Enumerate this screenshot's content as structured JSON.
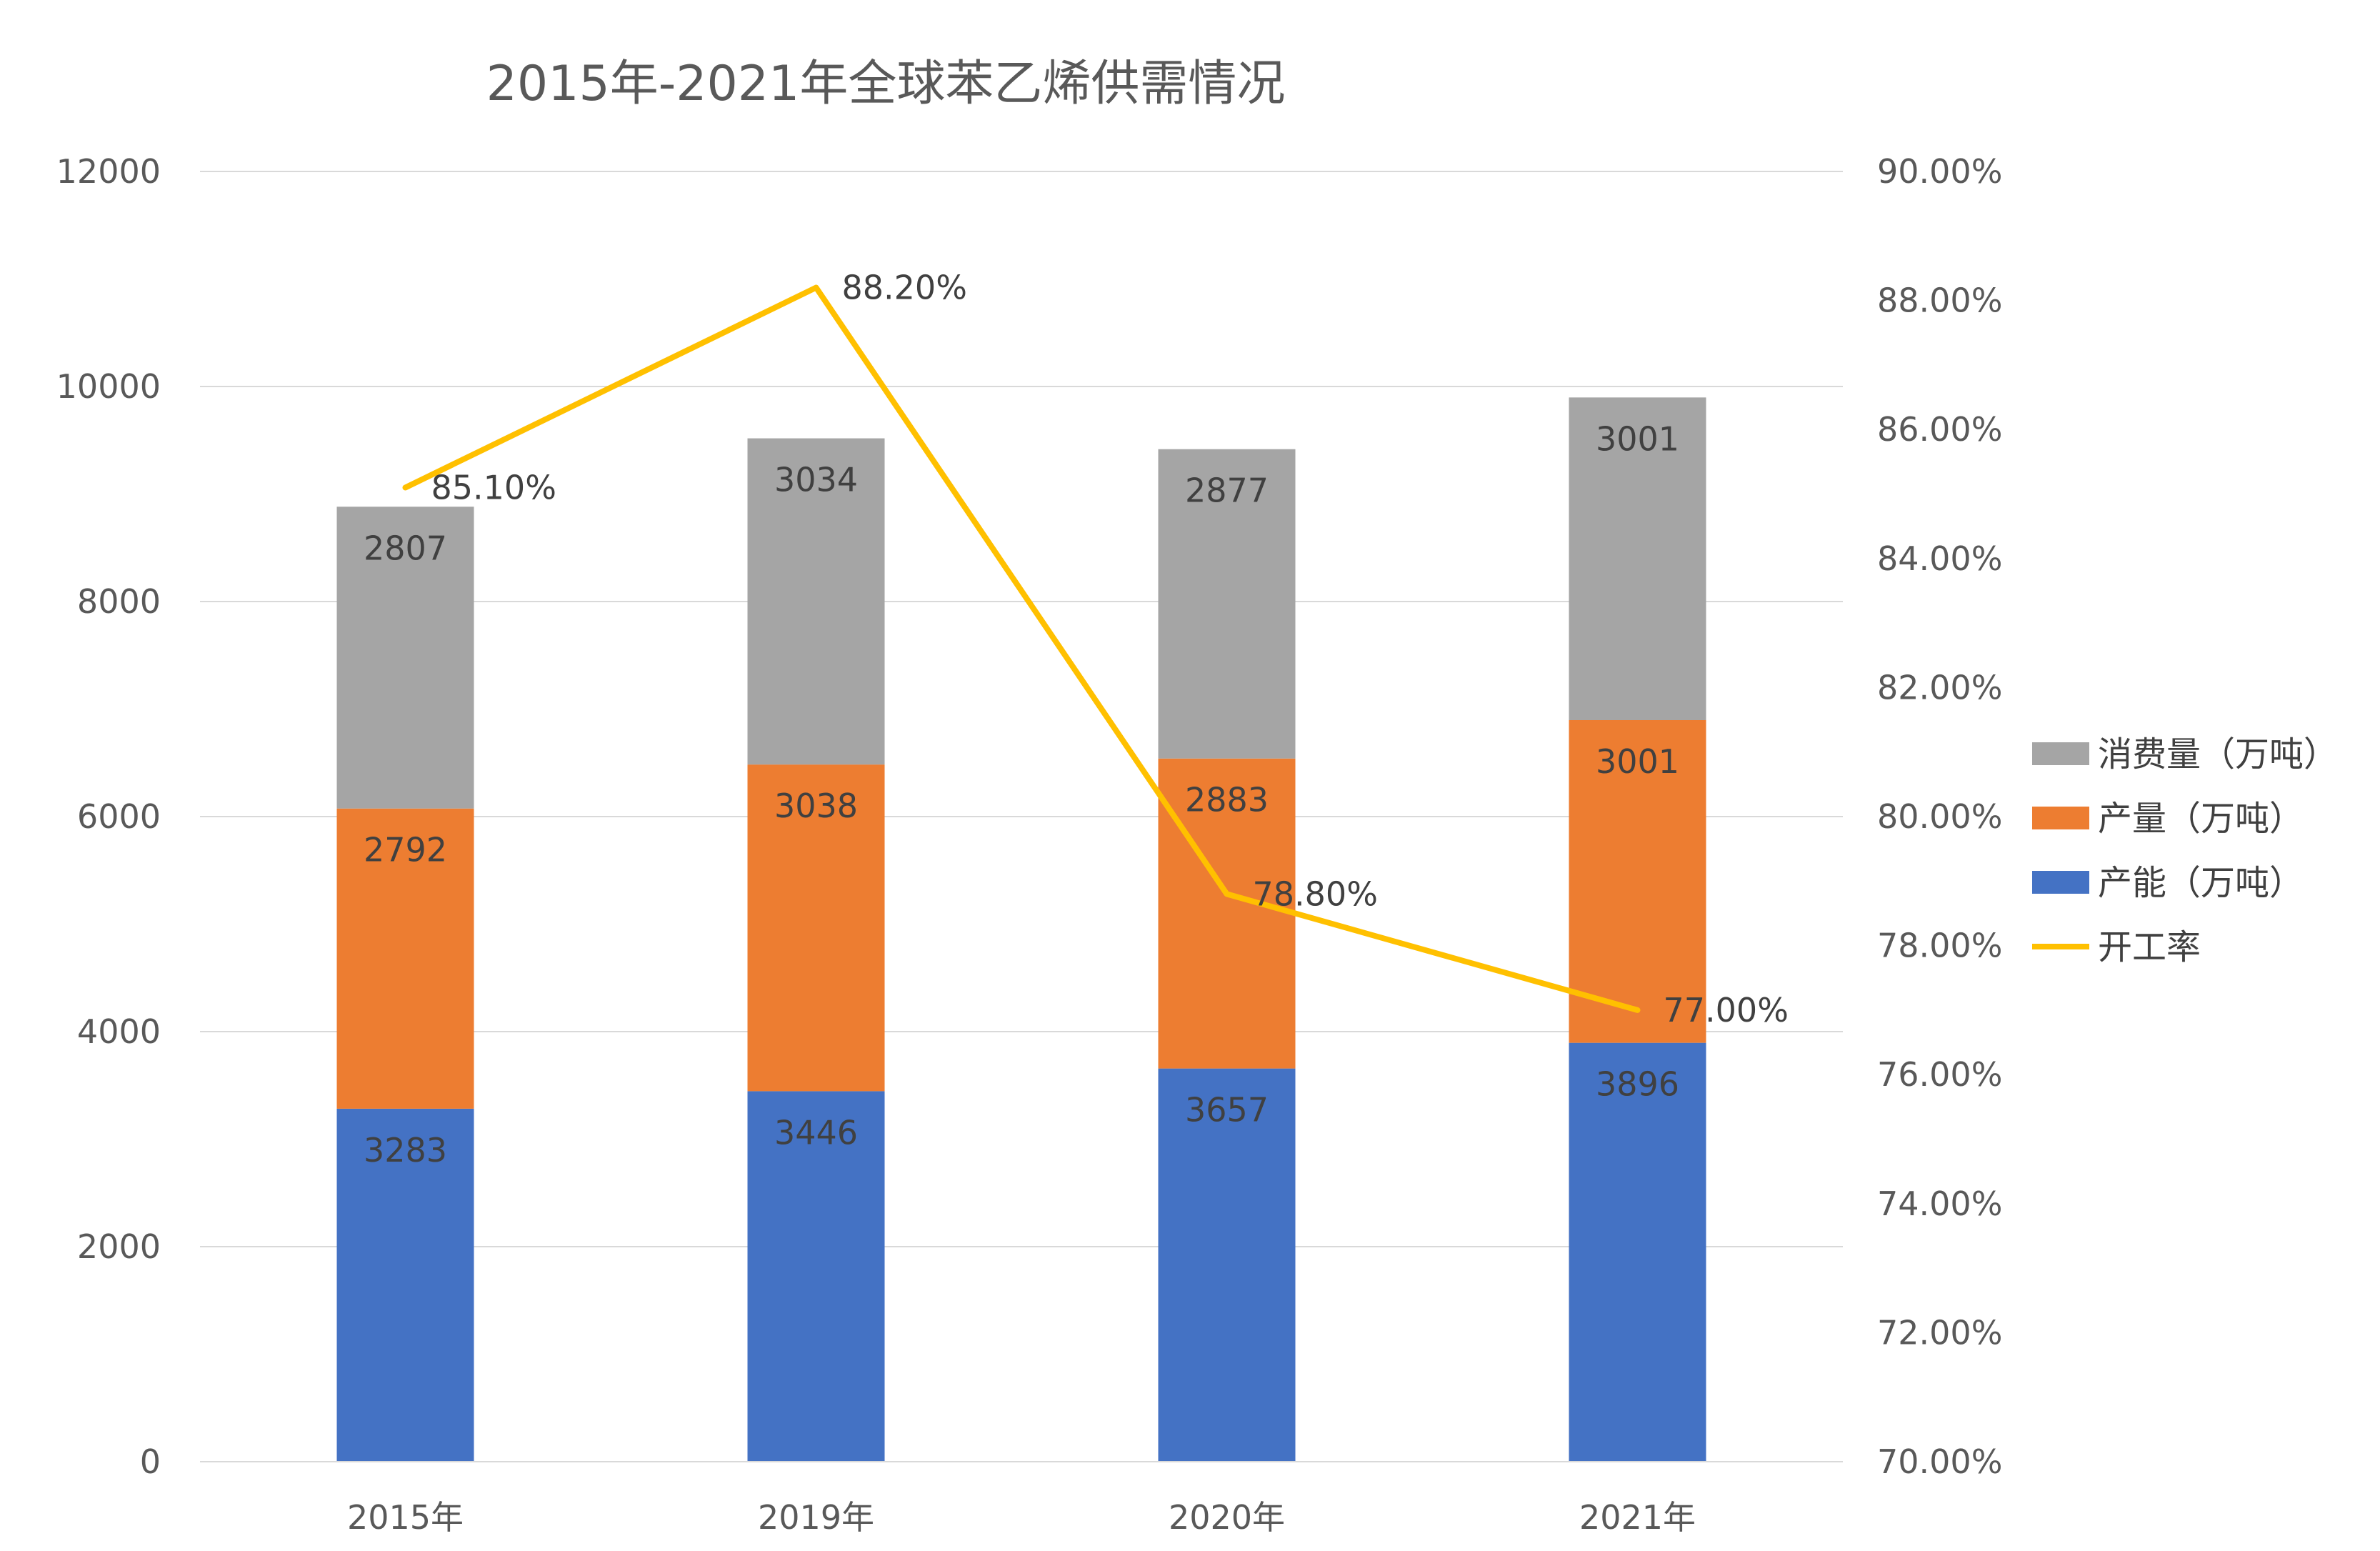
{
  "chart_data": {
    "type": "bar",
    "stacked": true,
    "title": "2015年-2021年全球苯乙烯供需情况",
    "categories": [
      "2015年",
      "2019年",
      "2020年",
      "2021年"
    ],
    "ylim": [
      0,
      12000
    ],
    "yticks": [
      0,
      2000,
      4000,
      6000,
      8000,
      10000,
      12000
    ],
    "y2lim": [
      70,
      90
    ],
    "y2ticks": [
      "70.00%",
      "72.00%",
      "74.00%",
      "76.00%",
      "78.00%",
      "80.00%",
      "82.00%",
      "84.00%",
      "86.00%",
      "88.00%",
      "90.00%"
    ],
    "grid": true,
    "legend_position": "right",
    "series": [
      {
        "name": "产能（万吨）",
        "type": "bar",
        "axis": "left",
        "color": "#4472C4",
        "values": [
          3283,
          3446,
          3657,
          3896
        ]
      },
      {
        "name": "产量（万吨）",
        "type": "bar",
        "axis": "left",
        "color": "#ED7D31",
        "values": [
          2792,
          3038,
          2883,
          3001
        ]
      },
      {
        "name": "消费量（万吨）",
        "type": "bar",
        "axis": "left",
        "color": "#A5A5A5",
        "values": [
          2807,
          3034,
          2877,
          3001
        ]
      },
      {
        "name": "开工率",
        "type": "line",
        "axis": "right",
        "color": "#FFC000",
        "values": [
          85.1,
          88.2,
          78.8,
          77.0
        ],
        "labels": [
          "85.10%",
          "88.20%",
          "78.80%",
          "77.00%"
        ]
      }
    ],
    "legend": [
      "消费量（万吨）",
      "产量（万吨）",
      "产能（万吨）",
      "开工率"
    ]
  }
}
